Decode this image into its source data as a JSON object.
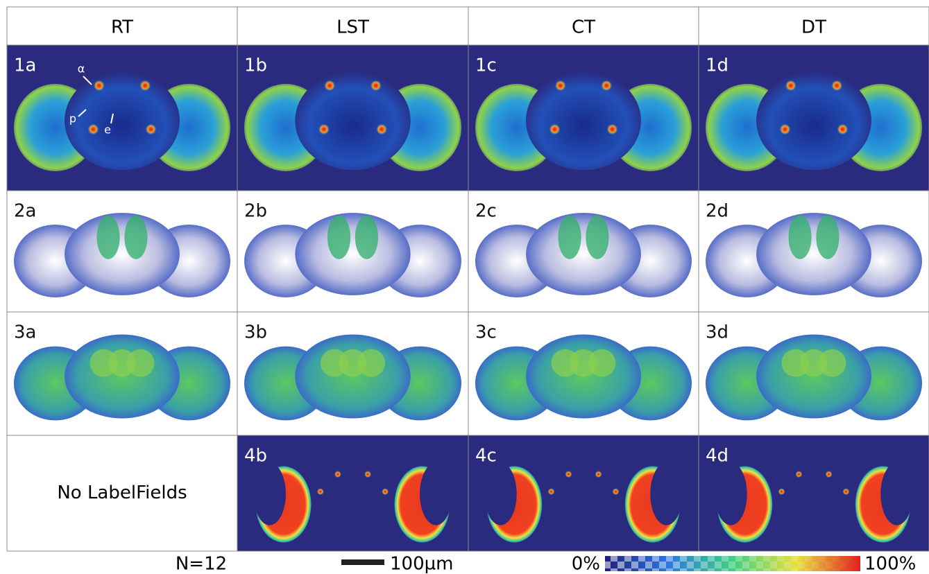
{
  "header": {
    "columns": [
      "RT",
      "LST",
      "CT",
      "DT"
    ]
  },
  "rows": [
    {
      "labels": [
        "1a",
        "1b",
        "1c",
        "1d"
      ]
    },
    {
      "labels": [
        "2a",
        "2b",
        "2c",
        "2d"
      ]
    },
    {
      "labels": [
        "3a",
        "3b",
        "3c",
        "3d"
      ]
    },
    {
      "note": "No LabelFields",
      "labels": [
        "4b",
        "4c",
        "4d"
      ]
    }
  ],
  "annotations": [
    "α",
    "p",
    "e"
  ],
  "footer": {
    "sample_size": "N=12",
    "scale_bar": "100µm",
    "colorbar_min": "0%",
    "colorbar_max": "100%"
  }
}
